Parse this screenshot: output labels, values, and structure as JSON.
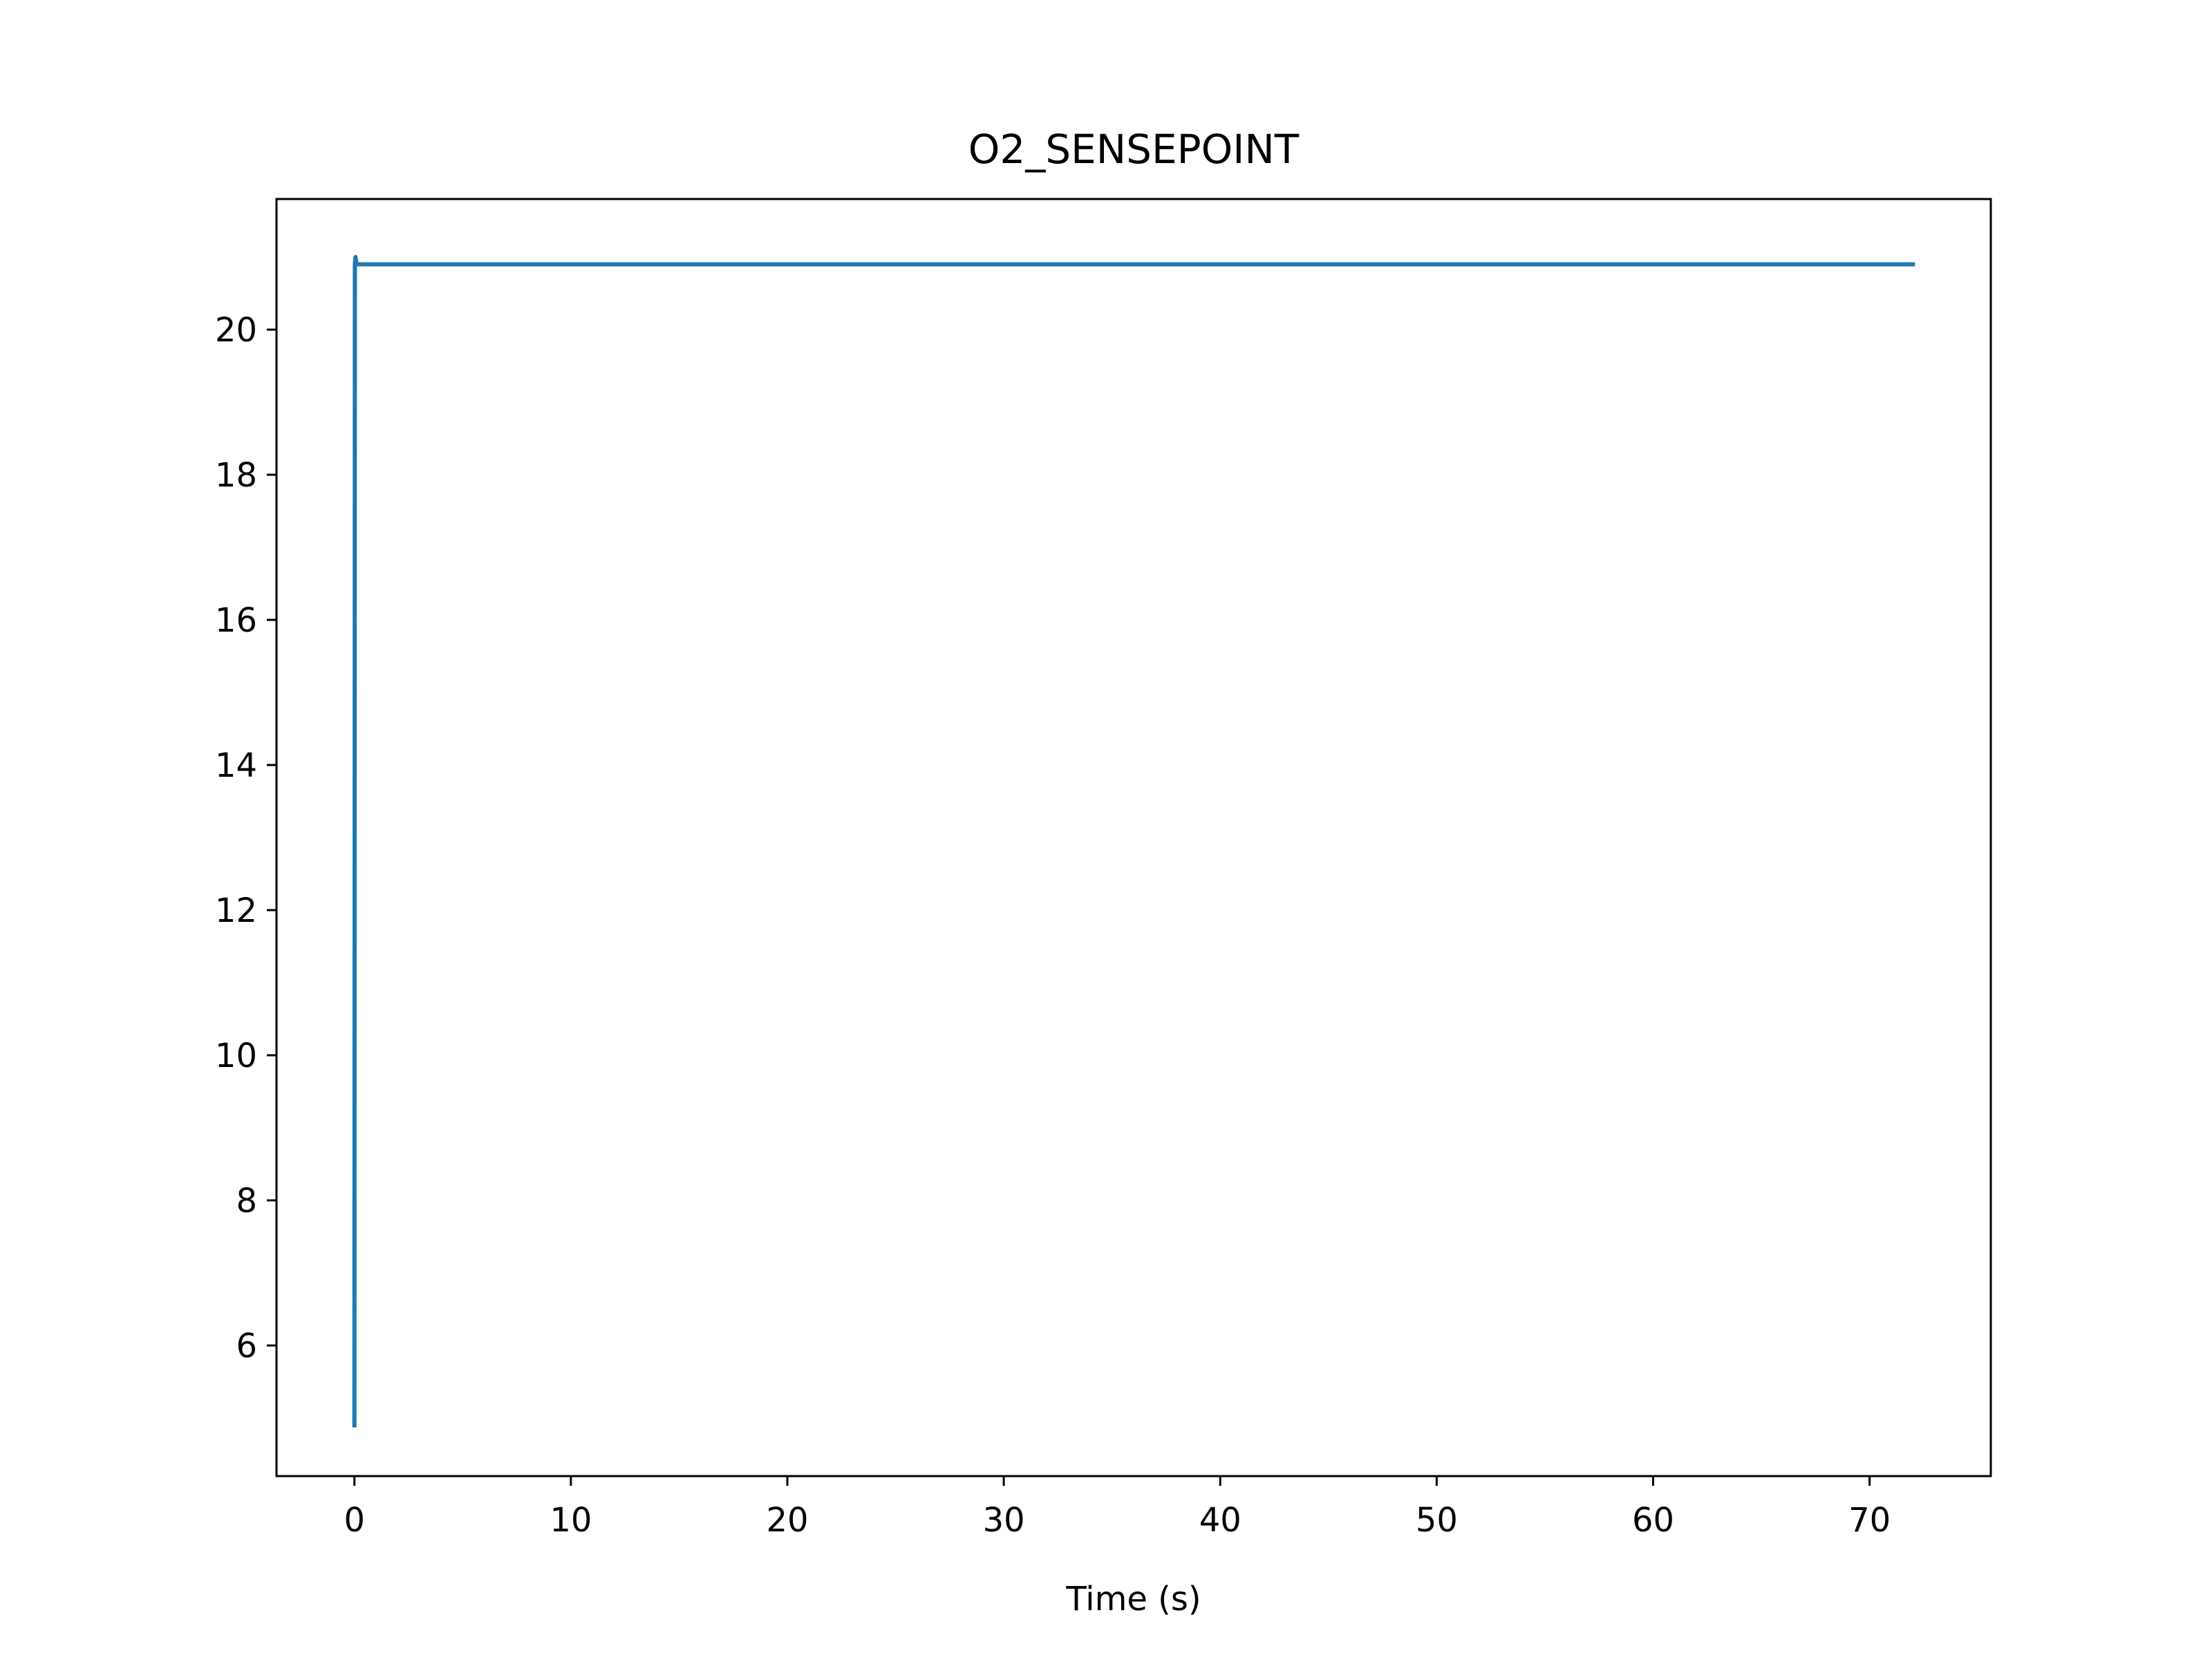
{
  "chart_data": {
    "type": "line",
    "title": "O2_SENSEPOINT",
    "xlabel": "Time (s)",
    "ylabel": "",
    "xlim": [
      -3.6,
      75.6
    ],
    "ylim": [
      4.2,
      21.8
    ],
    "x_ticks": [
      0,
      10,
      20,
      30,
      40,
      50,
      60,
      70
    ],
    "x_tick_labels": [
      "0",
      "10",
      "20",
      "30",
      "40",
      "50",
      "60",
      "70"
    ],
    "y_ticks": [
      6,
      8,
      10,
      12,
      14,
      16,
      18,
      20
    ],
    "y_tick_labels": [
      "6",
      "8",
      "10",
      "12",
      "14",
      "16",
      "18",
      "20"
    ],
    "grid": false,
    "legend": "none",
    "series": [
      {
        "color": "#1f77b4",
        "x": [
          0.0,
          0.02,
          0.05,
          0.1,
          0.2,
          1,
          10,
          20,
          30,
          40,
          50,
          60,
          70,
          72
        ],
        "y": [
          4.9,
          20.9,
          21.0,
          20.9,
          20.9,
          20.9,
          20.9,
          20.9,
          20.9,
          20.9,
          20.9,
          20.9,
          20.9,
          20.9
        ]
      }
    ]
  }
}
